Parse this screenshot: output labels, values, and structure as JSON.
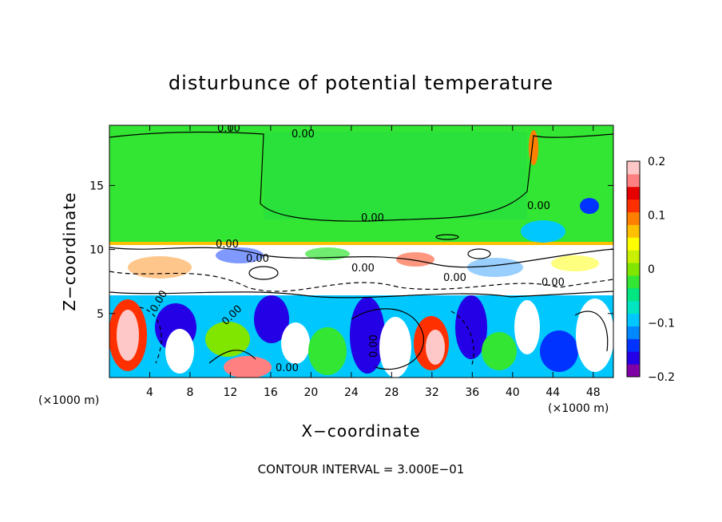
{
  "chart_data": {
    "type": "heatmap",
    "title": "disturbunce of potential temperature",
    "xlabel": "X−coordinate",
    "ylabel": "Z−coordinate",
    "x_unit_label": "(×1000 m)",
    "y_unit_label": "(×1000 m)",
    "xlim": [
      0,
      50
    ],
    "ylim": [
      0,
      19.7
    ],
    "x_ticks": [
      4,
      8,
      12,
      16,
      20,
      24,
      28,
      32,
      36,
      40,
      44,
      48
    ],
    "x_tick_labels": [
      "4",
      "8",
      "12",
      "16",
      "20",
      "24",
      "28",
      "32",
      "36",
      "40",
      "44",
      "48"
    ],
    "y_ticks": [
      5,
      10,
      15
    ],
    "y_tick_labels": [
      "5",
      "10",
      "15"
    ],
    "colorbar": {
      "min": -0.2,
      "max": 0.2,
      "tick_values": [
        0.2,
        0.1,
        0,
        -0.1,
        -0.2
      ],
      "tick_labels": [
        "0.2",
        "0.1",
        "0",
        "−0.1",
        "−0.2"
      ],
      "colors": [
        "#7f00a6",
        "#2400e6",
        "#0033ff",
        "#0088ff",
        "#00c8ff",
        "#00e6c0",
        "#00e680",
        "#33e633",
        "#80e600",
        "#c8f000",
        "#ffff00",
        "#ffc000",
        "#ff8000",
        "#ff3000",
        "#e60000",
        "#ff8080",
        "#ffc8c8"
      ]
    },
    "contour_labels": [
      "0.00",
      "0.00",
      "0.00",
      "0.00",
      "0.00",
      "0.00",
      "0.00",
      "0.00",
      "0.00",
      "0.00",
      "0.00",
      "0.00",
      "0.00"
    ],
    "footer": "CONTOUR INTERVAL = 3.000E−01"
  }
}
